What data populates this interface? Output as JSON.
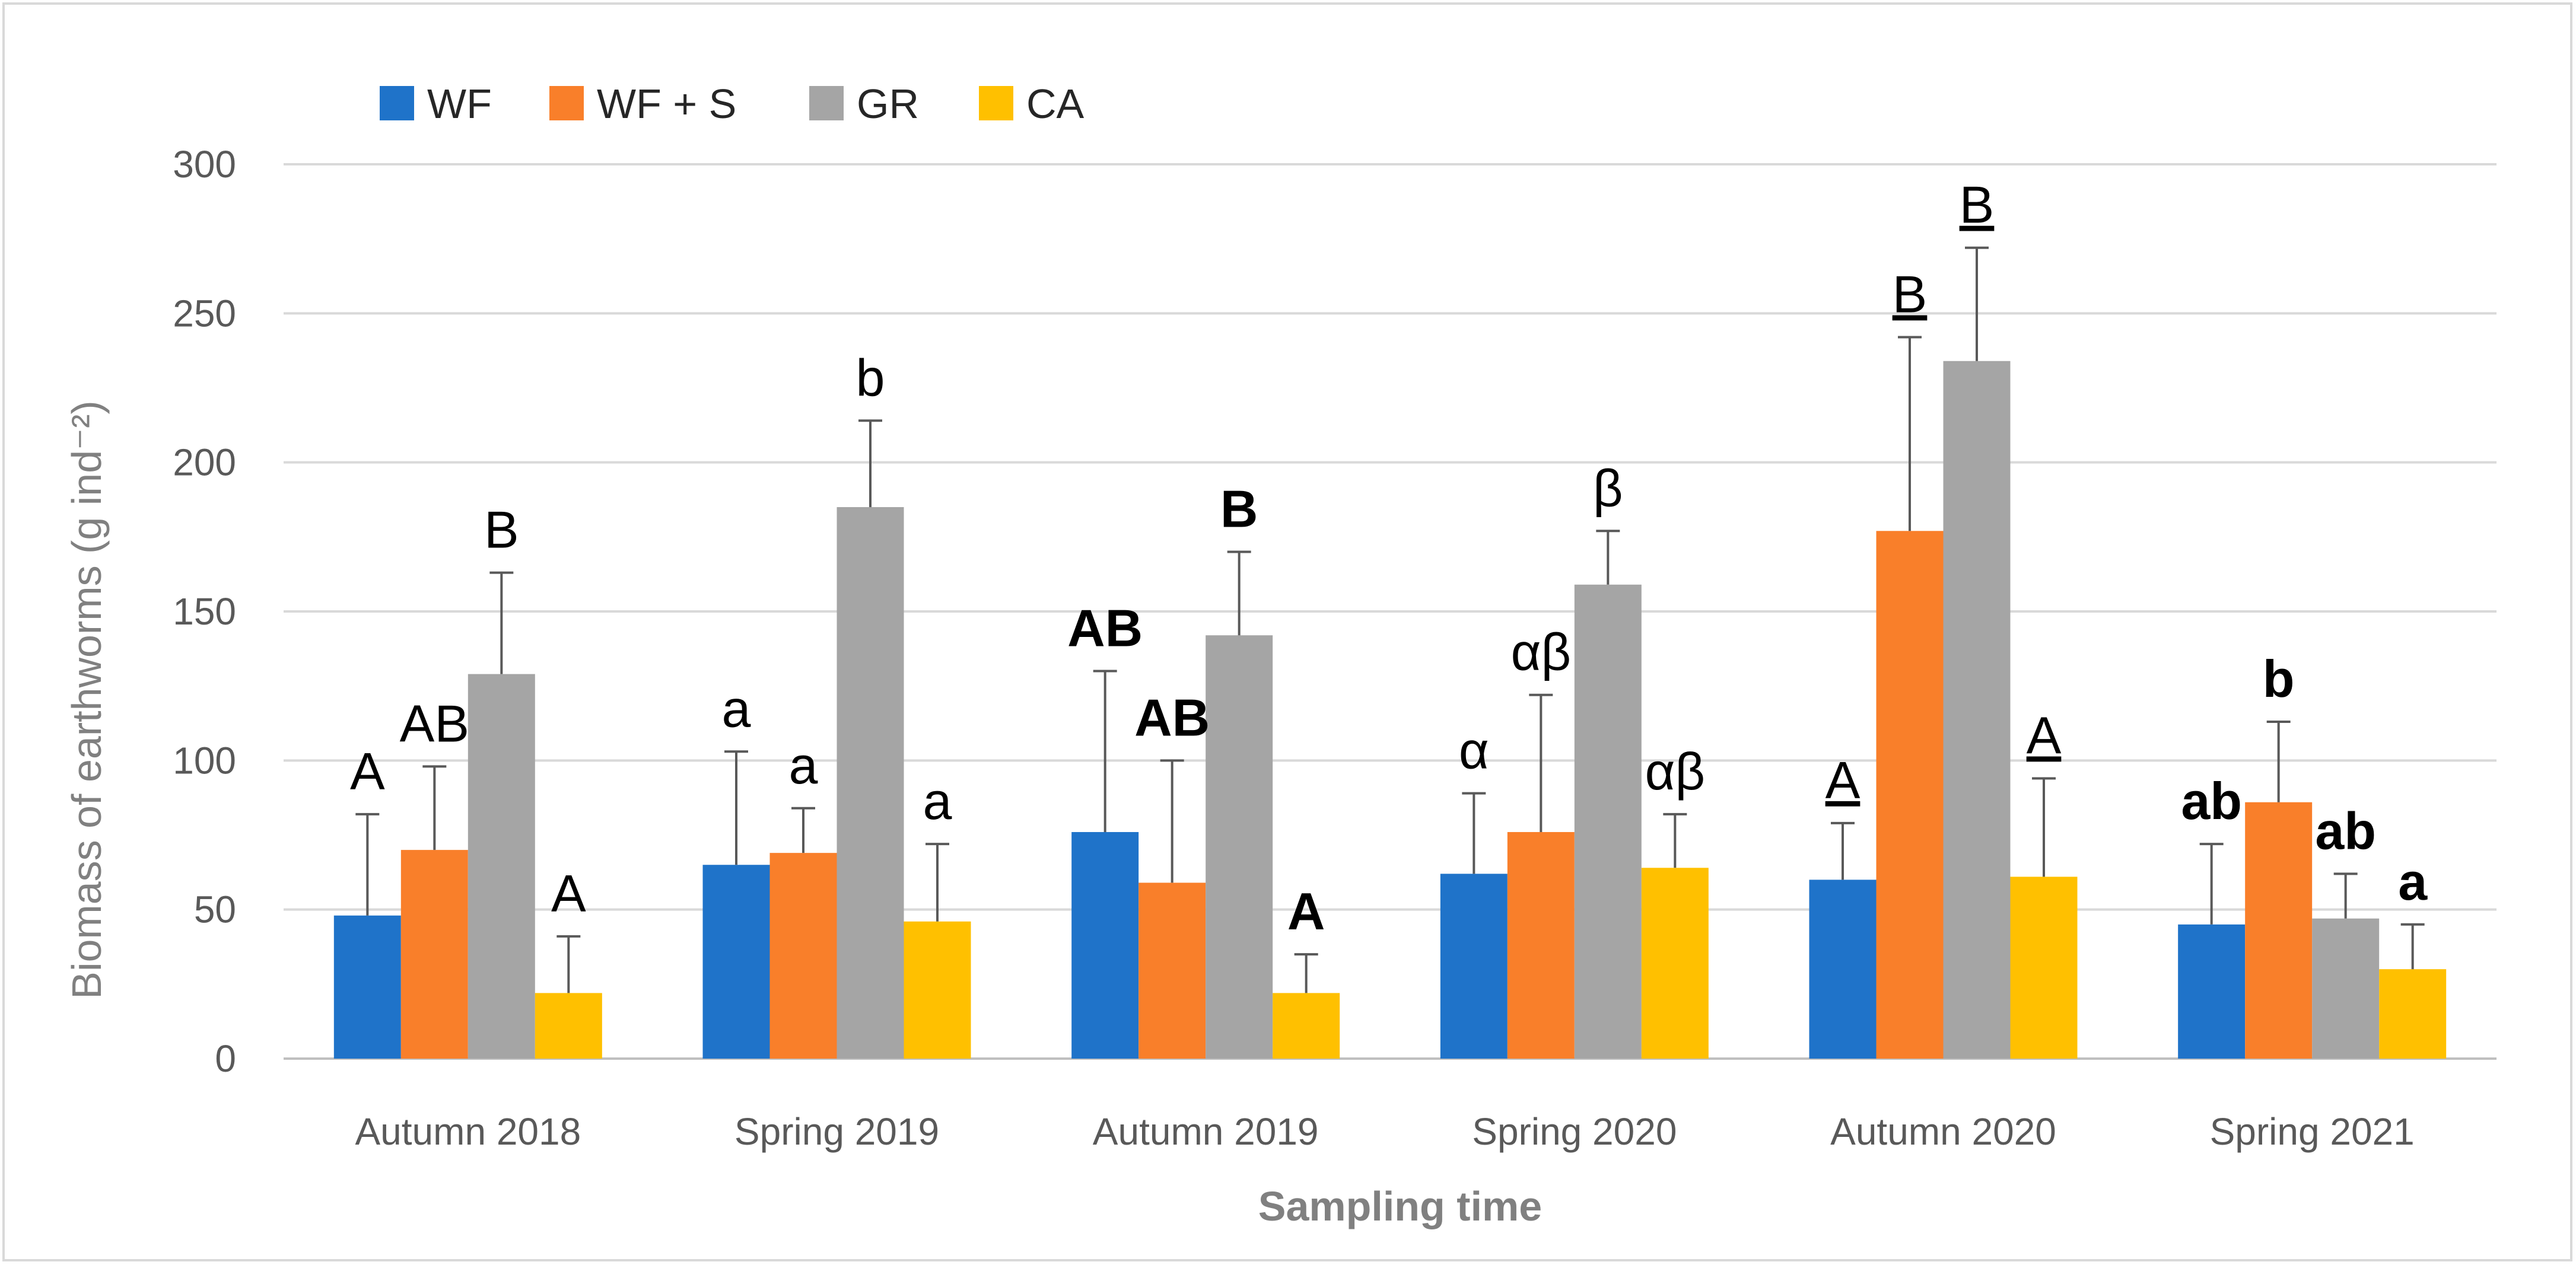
{
  "chart_data": {
    "type": "bar",
    "xlabel": "Sampling time",
    "ylabel": "Biomass of earthworms (g ind⁻²)",
    "ylim": [
      0,
      300
    ],
    "yticks": [
      0,
      50,
      100,
      150,
      200,
      250,
      300
    ],
    "grid": true,
    "legend_position": "top-left",
    "categories": [
      "Autumn 2018",
      "Spring 2019",
      "Autumn 2019",
      "Spring 2020",
      "Autumn 2020",
      "Spring 2021"
    ],
    "series": [
      {
        "name": "WF",
        "color": "#1f73c9",
        "values": [
          48,
          65,
          76,
          62,
          60,
          45
        ],
        "errors": [
          34,
          38,
          54,
          27,
          19,
          27
        ],
        "labels": [
          "A",
          "a",
          "AB",
          "α",
          "A",
          "ab"
        ]
      },
      {
        "name": "WF + S",
        "color": "#f97f2a",
        "values": [
          70,
          69,
          59,
          76,
          177,
          86
        ],
        "errors": [
          28,
          15,
          41,
          46,
          65,
          27
        ],
        "labels": [
          "AB",
          "a",
          "AB",
          "αβ",
          "B",
          "b"
        ]
      },
      {
        "name": "GR",
        "color": "#a5a5a5",
        "values": [
          129,
          185,
          142,
          159,
          234,
          47
        ],
        "errors": [
          34,
          29,
          28,
          18,
          38,
          15
        ],
        "labels": [
          "B",
          "b",
          "B",
          "β",
          "B",
          "ab"
        ]
      },
      {
        "name": "CA",
        "color": "#ffc000",
        "values": [
          22,
          46,
          22,
          64,
          61,
          30
        ],
        "errors": [
          19,
          26,
          13,
          18,
          33,
          15
        ],
        "labels": [
          "A",
          "a",
          "A",
          "αβ",
          "A",
          "a"
        ]
      }
    ],
    "label_style": {
      "bold_groups": [
        2,
        5
      ],
      "underline_groups": [
        4
      ]
    }
  }
}
